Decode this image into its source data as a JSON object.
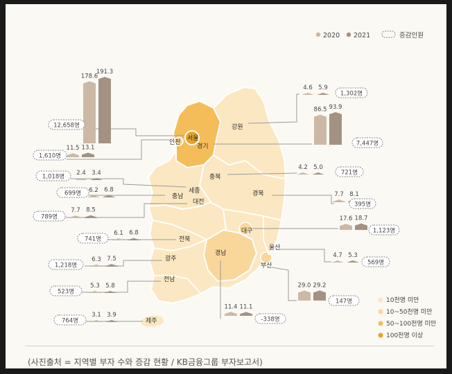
{
  "legend": {
    "y2020": "2020",
    "y2021": "2021",
    "change": "증감인원",
    "color_2020": "#cbb9a6",
    "color_2021": "#a39282",
    "tiers": [
      "10천명 미만",
      "10~50천명 미만",
      "50~100천명 미만",
      "100천명 이상"
    ],
    "tier_colors": [
      "#fbe7c1",
      "#f9d79a",
      "#f4bd59",
      "#e9a12a"
    ]
  },
  "caption": "(사진출처 = 지역별 부자 수와 증감 현황 / KB금융그룹 부자보고서)",
  "chart_data": {
    "type": "bar",
    "unit_note": "",
    "series": [
      {
        "name": "2020"
      },
      {
        "name": "2021"
      }
    ],
    "regions": [
      {
        "name": "서울",
        "v2020": 178.6,
        "v2021": 191.3,
        "l2020": "178.6",
        "l2021": "191.3",
        "change": "12,658명"
      },
      {
        "name": "인천",
        "v2020": 11.5,
        "v2021": 13.1,
        "l2020": "11.5",
        "l2021": "13.1",
        "change": "1,610명"
      },
      {
        "name": "세종",
        "v2020": 2.4,
        "v2021": 3.4,
        "l2020": "2.4",
        "l2021": "3.4",
        "change": "1,018명"
      },
      {
        "name": "충남",
        "v2020": 6.2,
        "v2021": 6.8,
        "l2020": "6.2",
        "l2021": "6.8",
        "change": "699명"
      },
      {
        "name": "대전",
        "v2020": 7.7,
        "v2021": 8.5,
        "l2020": "7.7",
        "l2021": "8.5",
        "change": "789명"
      },
      {
        "name": "전북",
        "v2020": 6.1,
        "v2021": 6.8,
        "l2020": "6.1",
        "l2021": "6.8",
        "change": "741명"
      },
      {
        "name": "광주",
        "v2020": 6.3,
        "v2021": 7.5,
        "l2020": "6.3",
        "l2021": "7.5",
        "change": "1,218명"
      },
      {
        "name": "전남",
        "v2020": 5.3,
        "v2021": 5.8,
        "l2020": "5.3",
        "l2021": "5.8",
        "change": "523명"
      },
      {
        "name": "제주",
        "v2020": 3.1,
        "v2021": 3.9,
        "l2020": "3.1",
        "l2021": "3.9",
        "change": "764명"
      },
      {
        "name": "강원",
        "v2020": 4.6,
        "v2021": 5.9,
        "l2020": "4.6",
        "l2021": "5.9",
        "change": "1,302명"
      },
      {
        "name": "경기",
        "v2020": 86.5,
        "v2021": 93.9,
        "l2020": "86.5",
        "l2021": "93.9",
        "change": "7,447명"
      },
      {
        "name": "충북",
        "v2020": 4.2,
        "v2021": 5.0,
        "l2020": "4.2",
        "l2021": "5.0",
        "change": "721명"
      },
      {
        "name": "경북",
        "v2020": 7.7,
        "v2021": 8.1,
        "l2020": "7.7",
        "l2021": "8.1",
        "change": "395명"
      },
      {
        "name": "대구",
        "v2020": 17.6,
        "v2021": 18.7,
        "l2020": "17.6",
        "l2021": "18.7",
        "change": "1,123명"
      },
      {
        "name": "울산",
        "v2020": 4.7,
        "v2021": 5.3,
        "l2020": "4.7",
        "l2021": "5.3",
        "change": "569명"
      },
      {
        "name": "부산",
        "v2020": 29.0,
        "v2021": 29.2,
        "l2020": "29.0",
        "l2021": "29.2",
        "change": "147명"
      },
      {
        "name": "경남",
        "v2020": 11.4,
        "v2021": 11.1,
        "l2020": "11.4",
        "l2021": "11.1",
        "change": "-338명"
      }
    ]
  }
}
